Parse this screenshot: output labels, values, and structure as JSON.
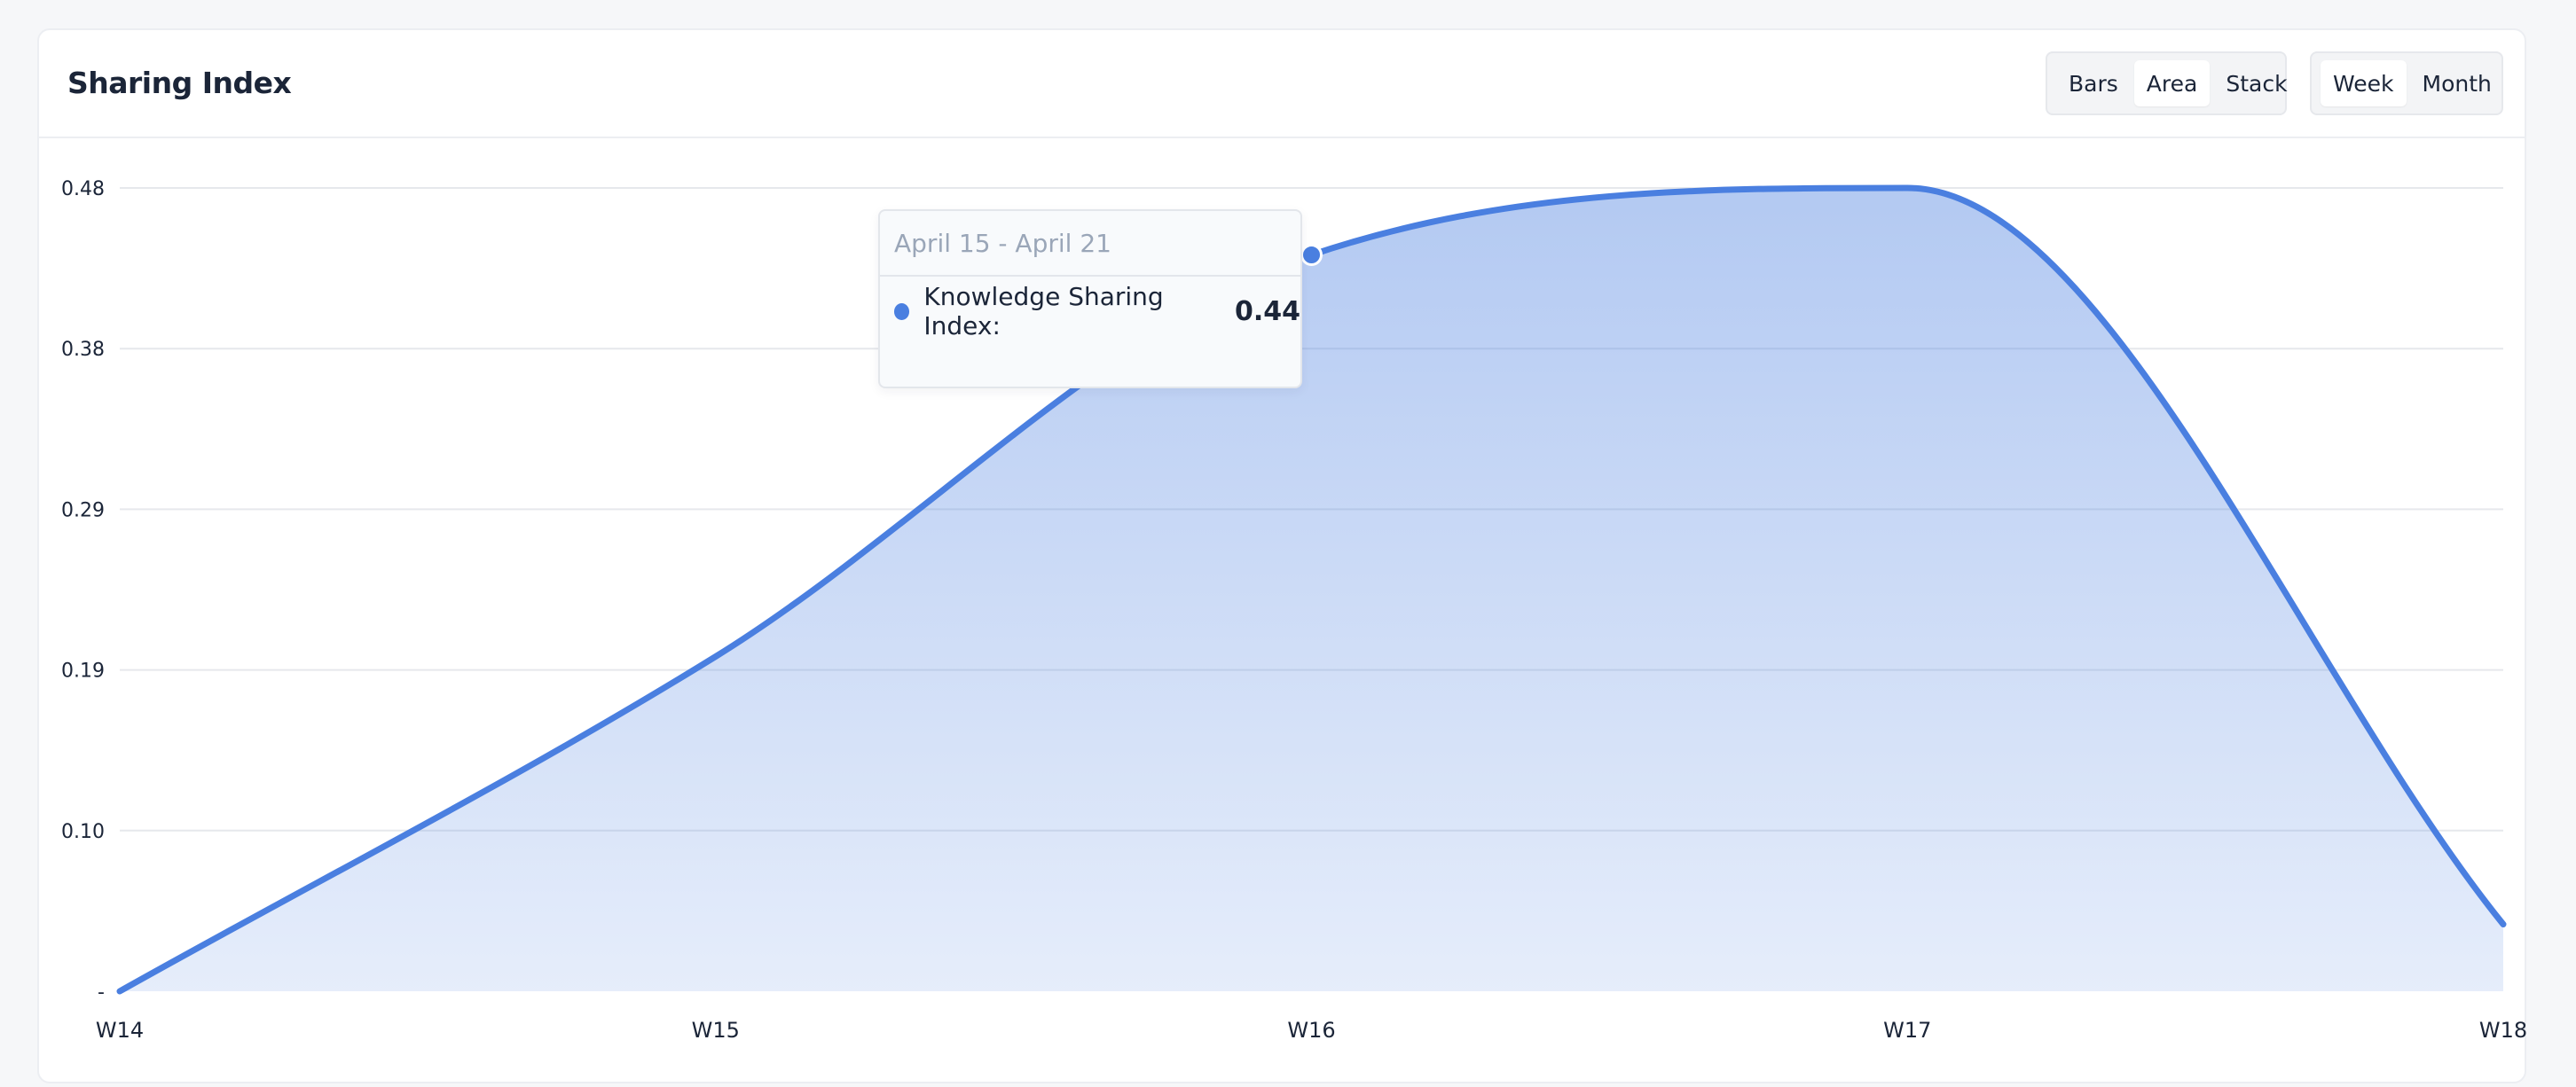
{
  "card": {
    "title": "Sharing Index",
    "view_toggle": [
      {
        "label": "Bars",
        "active": false
      },
      {
        "label": "Area",
        "active": true
      },
      {
        "label": "Stack",
        "active": false
      }
    ],
    "period_toggle": [
      {
        "label": "Week",
        "active": true
      },
      {
        "label": "Month",
        "active": false
      }
    ]
  },
  "tooltip": {
    "range": "April 15 - April 21",
    "series_label": "Knowledge Sharing Index:",
    "value": "0.44",
    "color": "#4a7fe0"
  },
  "chart_data": {
    "type": "area",
    "title": "Sharing Index",
    "categories": [
      "W14",
      "W15",
      "W16",
      "W17",
      "W18"
    ],
    "series": [
      {
        "name": "Knowledge Sharing Index",
        "values": [
          0.0,
          0.2,
          0.44,
          0.48,
          0.04
        ],
        "color": "#4a7fe0"
      }
    ],
    "y_ticks": [
      "-",
      "0.10",
      "0.19",
      "0.29",
      "0.38",
      "0.48"
    ],
    "y_tick_values": [
      0,
      0.096,
      0.192,
      0.288,
      0.384,
      0.48
    ],
    "ylim": [
      0,
      0.48
    ],
    "grid": true,
    "highlighted_category": "W16"
  }
}
